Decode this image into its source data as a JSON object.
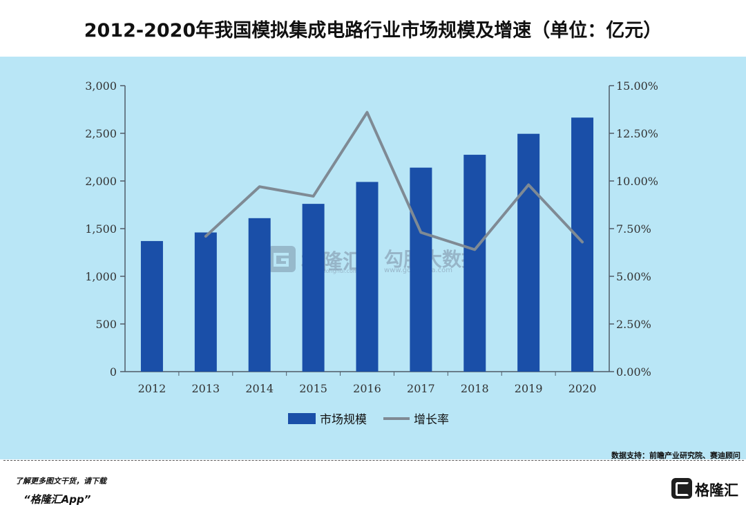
{
  "title": "2012-2020年我国模拟集成电路行业市场规模及增速（单位：亿元）",
  "chart_data": {
    "type": "bar",
    "categories": [
      "2012",
      "2013",
      "2014",
      "2015",
      "2016",
      "2017",
      "2018",
      "2019",
      "2020"
    ],
    "series": [
      {
        "name": "市场规模",
        "type": "bar",
        "axis": "left",
        "values": [
          1370,
          1460,
          1610,
          1760,
          1990,
          2140,
          2275,
          2495,
          2665
        ]
      },
      {
        "name": "增长率",
        "type": "line",
        "axis": "right",
        "values": [
          null,
          7.1,
          9.7,
          9.2,
          13.6,
          7.3,
          6.4,
          9.8,
          6.8
        ]
      }
    ],
    "y_left": {
      "ylim": [
        0,
        3000
      ],
      "ticks": [
        0,
        500,
        1000,
        1500,
        2000,
        2500,
        3000
      ],
      "tick_labels": [
        "0",
        "500",
        "1,000",
        "1,500",
        "2,000",
        "2,500",
        "3,000"
      ]
    },
    "y_right": {
      "ylim": [
        0,
        15
      ],
      "ticks": [
        0,
        2.5,
        5,
        7.5,
        10,
        12.5,
        15
      ],
      "tick_labels": [
        "0.00%",
        "2.50%",
        "5.00%",
        "7.50%",
        "10.00%",
        "12.50%",
        "15.00%"
      ]
    },
    "legend_position": "bottom",
    "colors": {
      "bar": "#1a4fa8",
      "line": "#7f8a94",
      "axis": "#4f5a66",
      "panel": "#b9e6f6"
    }
  },
  "watermark": {
    "brand": "格隆汇",
    "brand_url": "www.gelonghui.com",
    "partner": "勾股大数据",
    "partner_url": "www.gogudata.com"
  },
  "source": "数据支持：前瞻产业研究院、赛迪顾问",
  "footer": {
    "line1": "了解更多图文干货，请下载",
    "line2": "“格隆汇App”",
    "logo_text": "格隆汇"
  }
}
